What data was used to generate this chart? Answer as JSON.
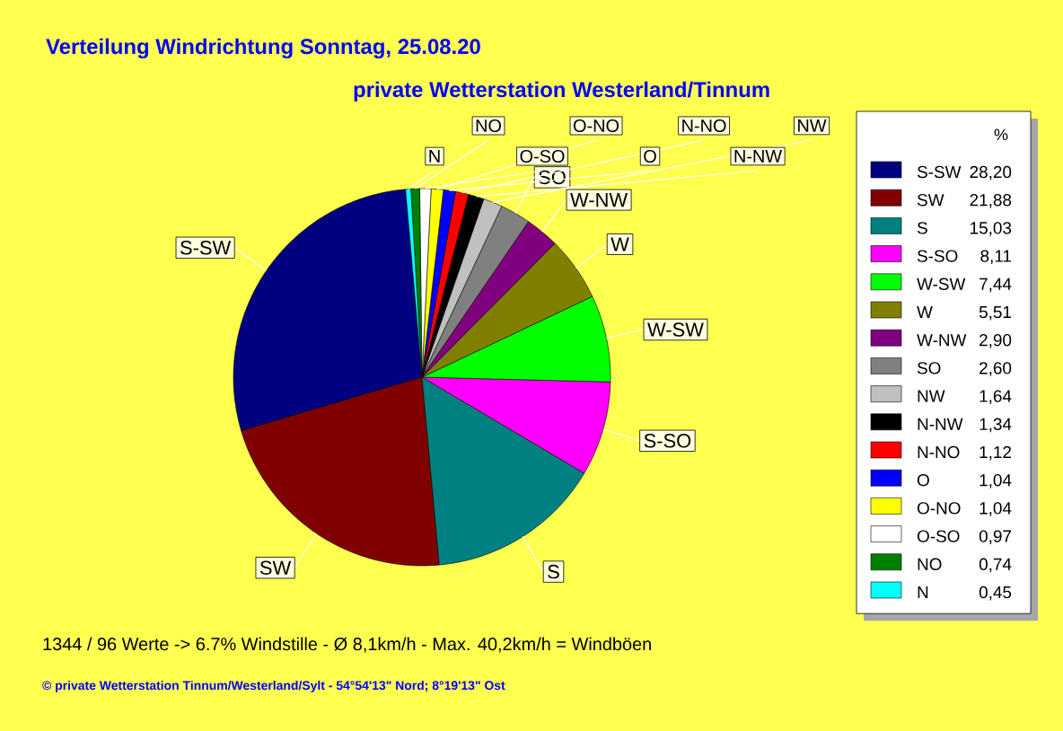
{
  "chart_data": {
    "type": "pie",
    "title": "Verteilung Windrichtung   Sonntag, 25.08.20",
    "subtitle": "private Wetterstation Westerland/Tinnum",
    "legend_title": "%",
    "legend": "right",
    "categories": [
      "S-SW",
      "SW",
      "S",
      "S-SO",
      "W-SW",
      "W",
      "W-NW",
      "SO",
      "NW",
      "N-NW",
      "N-NO",
      "O",
      "O-NO",
      "O-SO",
      "NO",
      "N"
    ],
    "values": [
      28.2,
      21.88,
      15.03,
      8.11,
      7.44,
      5.51,
      2.9,
      2.6,
      1.64,
      1.34,
      1.12,
      1.04,
      1.04,
      0.97,
      0.74,
      0.45
    ],
    "value_labels": [
      "28,20",
      "21,88",
      "15,03",
      "8,11",
      "7,44",
      "5,51",
      "2,90",
      "2,60",
      "1,64",
      "1,34",
      "1,12",
      "1,04",
      "1,04",
      "0,97",
      "0,74",
      "0,45"
    ],
    "colors": [
      "#000080",
      "#800000",
      "#008080",
      "#ff00ff",
      "#00ff00",
      "#808000",
      "#800080",
      "#808080",
      "#c0c0c0",
      "#000000",
      "#ff0000",
      "#0000ff",
      "#ffff00",
      "#ffffff",
      "#008000",
      "#00ffff"
    ],
    "annotations": [
      "1344 / 96 Werte  -> 6.7% Windstille   -   Ø 8,1km/h  -  Max. 40,2km/h = Windböen",
      "© private Wetterstation Tinnum/Westerland/Sylt   -   54°54'13\" Nord; 8°19'13\" Ost"
    ]
  }
}
